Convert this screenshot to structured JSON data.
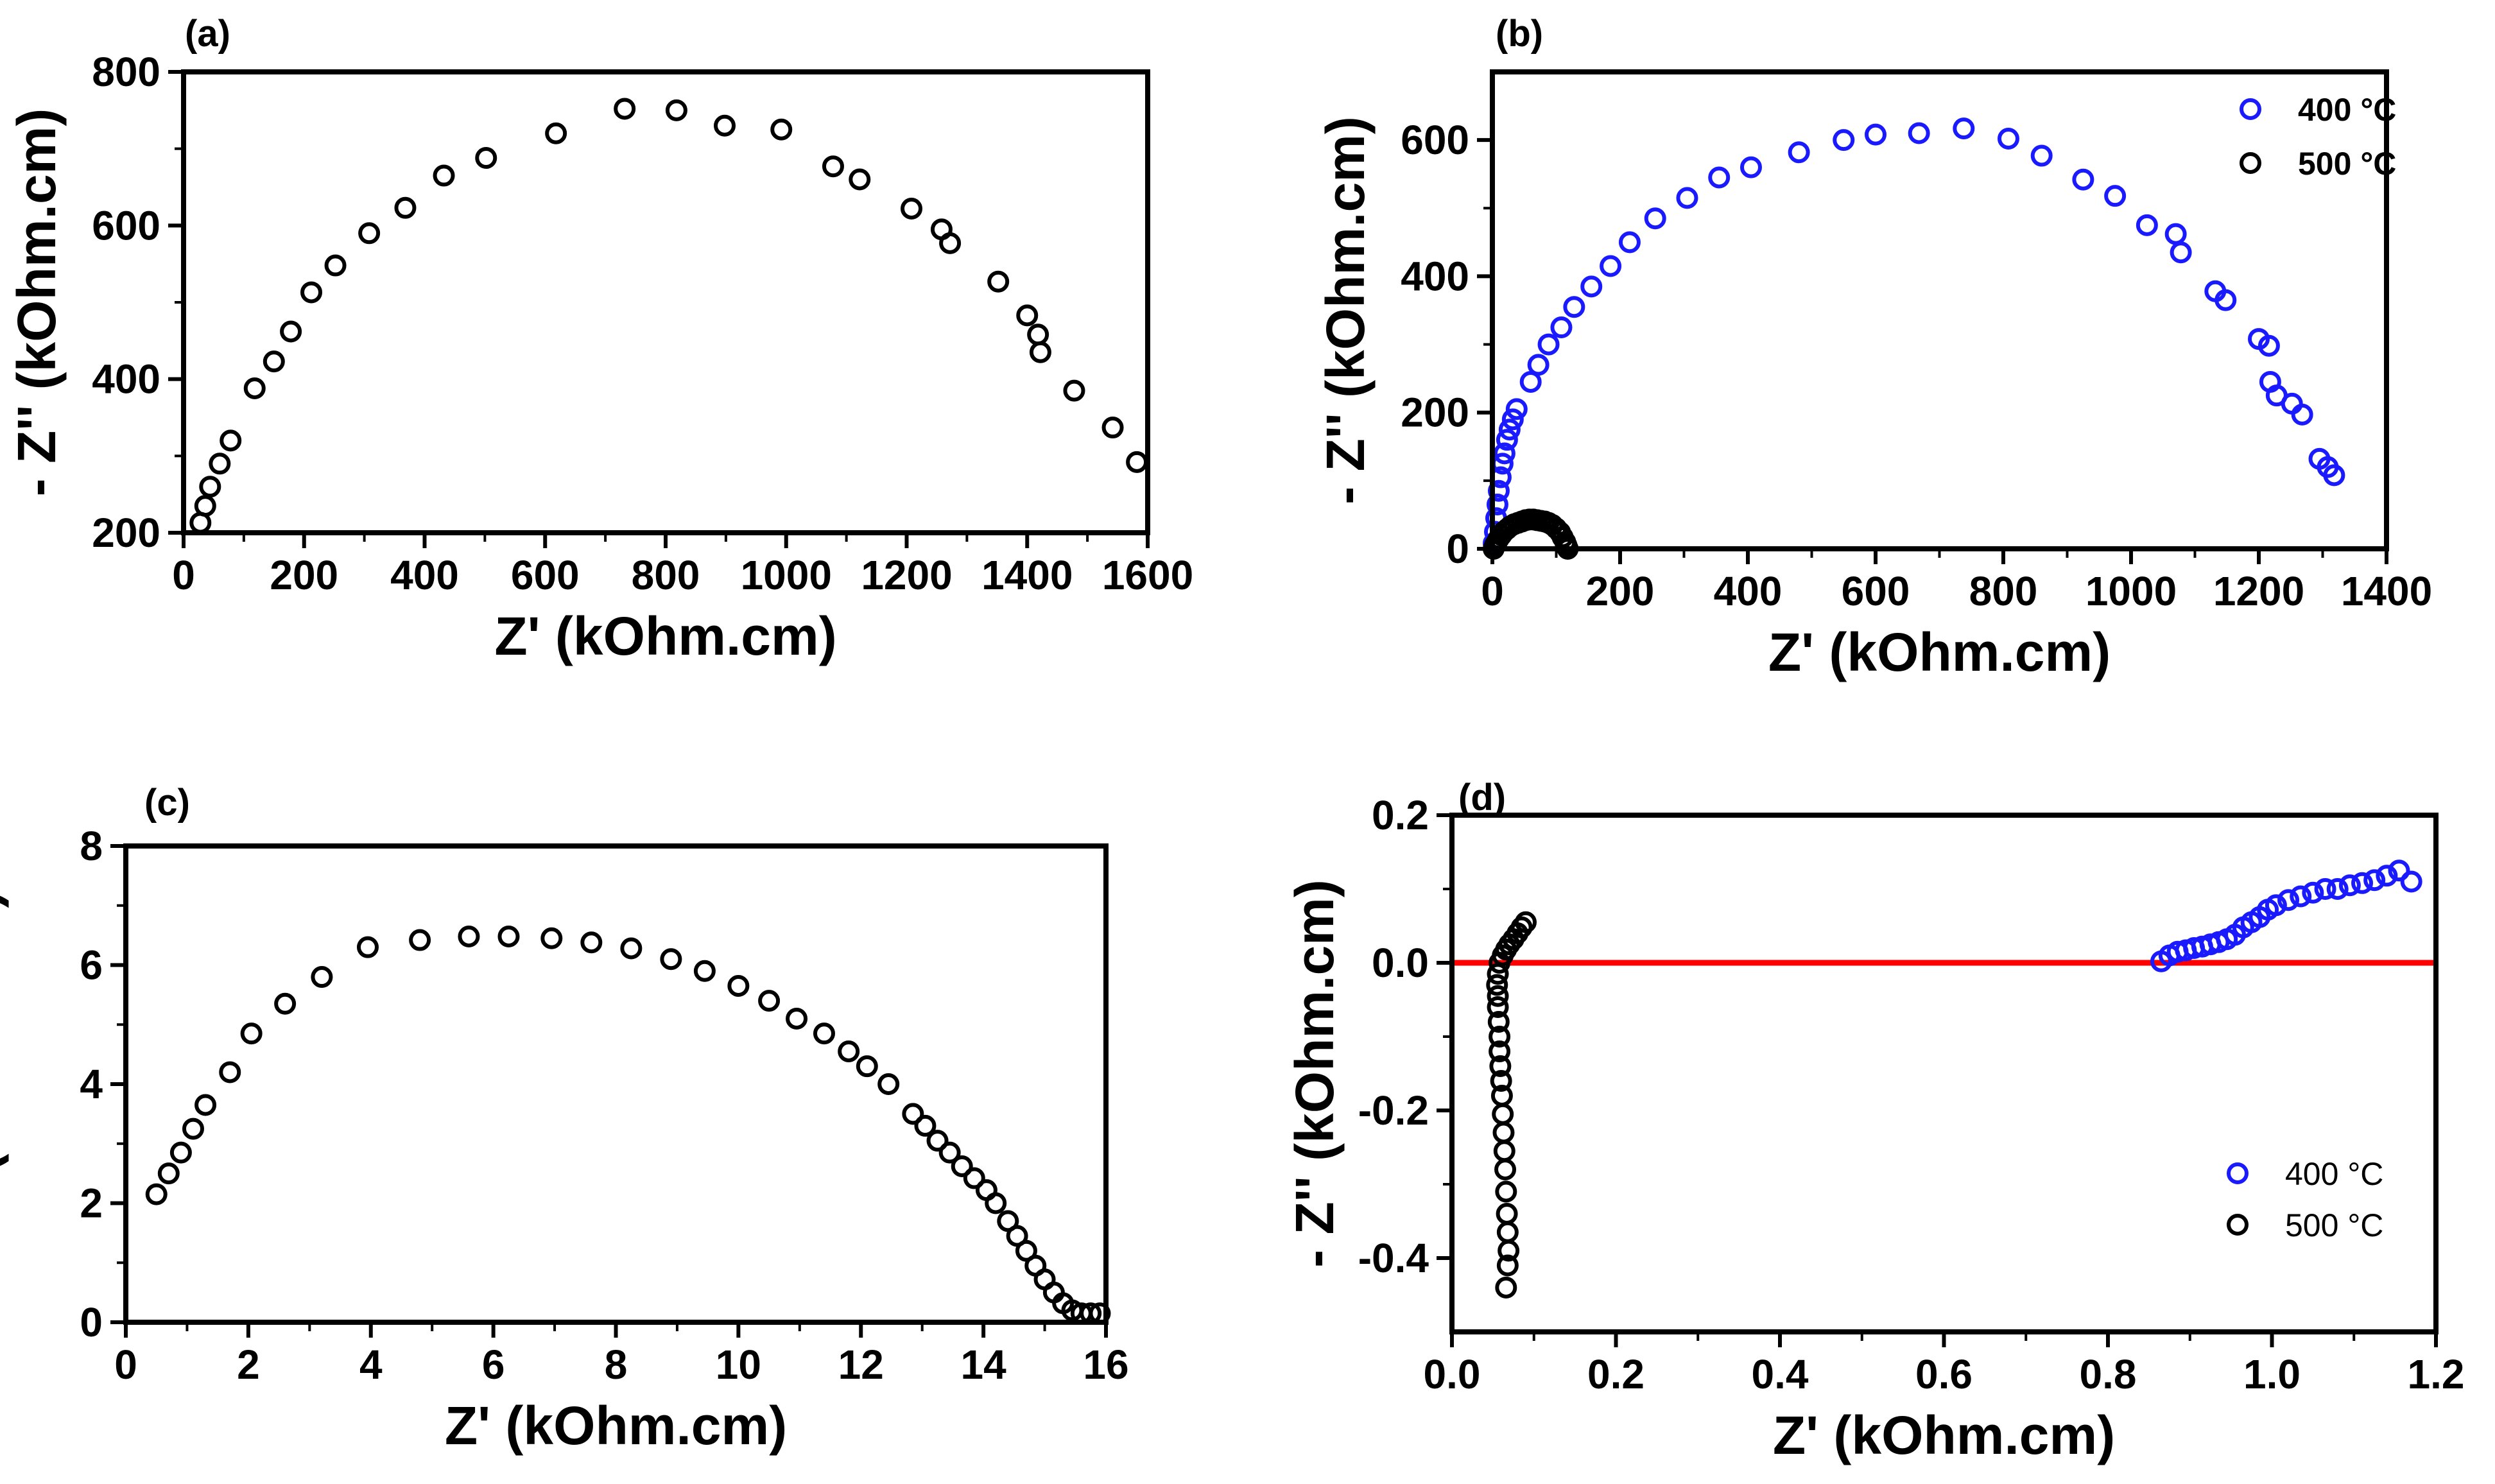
{
  "chart_data": [
    {
      "type": "scatter",
      "panel_label": "(a)",
      "xlabel": "Z' (kOhm.cm)",
      "ylabel": "- Z'' (kOhm.cm)",
      "xlim": [
        0,
        1600
      ],
      "ylim": [
        200,
        800
      ],
      "xticks": [
        0,
        200,
        400,
        600,
        800,
        1000,
        1200,
        1400,
        1600
      ],
      "xtick_labels": [
        "0",
        "200",
        "400",
        "600",
        "800",
        "1000",
        "1200",
        "1400",
        "1600"
      ],
      "yticks": [
        200,
        400,
        600,
        800
      ],
      "ytick_labels": [
        "200",
        "400",
        "600",
        "800"
      ],
      "legend": null,
      "series": [
        {
          "name": "",
          "color": "#000000",
          "points": [
            [
              28,
              213
            ],
            [
              36,
              235
            ],
            [
              44,
              260
            ],
            [
              60,
              290
            ],
            [
              78,
              320
            ],
            [
              118,
              388
            ],
            [
              150,
              423
            ],
            [
              178,
              462
            ],
            [
              212,
              513
            ],
            [
              252,
              548
            ],
            [
              308,
              590
            ],
            [
              368,
              623
            ],
            [
              432,
              665
            ],
            [
              502,
              688
            ],
            [
              618,
              720
            ],
            [
              732,
              752
            ],
            [
              818,
              750
            ],
            [
              898,
              730
            ],
            [
              992,
              725
            ],
            [
              1078,
              677
            ],
            [
              1122,
              660
            ],
            [
              1208,
              622
            ],
            [
              1258,
              595
            ],
            [
              1272,
              577
            ],
            [
              1352,
              527
            ],
            [
              1400,
              483
            ],
            [
              1418,
              458
            ],
            [
              1422,
              435
            ],
            [
              1478,
              385
            ],
            [
              1542,
              337
            ],
            [
              1582,
              292
            ]
          ]
        }
      ]
    },
    {
      "type": "scatter",
      "panel_label": "(b)",
      "xlabel": "Z' (kOhm.cm)",
      "ylabel": "- Z'' (kOhm.cm)",
      "xlim": [
        0,
        1400
      ],
      "ylim": [
        0,
        700
      ],
      "xticks": [
        0,
        200,
        400,
        600,
        800,
        1000,
        1200,
        1400
      ],
      "xtick_labels": [
        "0",
        "200",
        "400",
        "600",
        "800",
        "1000",
        "1200",
        "1400"
      ],
      "yticks": [
        0,
        200,
        400,
        600
      ],
      "ytick_labels": [
        "0",
        "200",
        "400",
        "600"
      ],
      "legend": {
        "position": "top-right",
        "bold": true
      },
      "series": [
        {
          "name": "400 °C",
          "color": "#1a1aff",
          "points": [
            [
              2,
              8
            ],
            [
              4,
              25
            ],
            [
              6,
              45
            ],
            [
              8,
              65
            ],
            [
              10,
              85
            ],
            [
              13,
              105
            ],
            [
              16,
              125
            ],
            [
              19,
              140
            ],
            [
              23,
              160
            ],
            [
              27,
              175
            ],
            [
              32,
              190
            ],
            [
              38,
              205
            ],
            [
              60,
              245
            ],
            [
              72,
              270
            ],
            [
              88,
              300
            ],
            [
              108,
              325
            ],
            [
              128,
              355
            ],
            [
              155,
              385
            ],
            [
              185,
              415
            ],
            [
              215,
              450
            ],
            [
              255,
              485
            ],
            [
              305,
              515
            ],
            [
              355,
              545
            ],
            [
              405,
              560
            ],
            [
              480,
              582
            ],
            [
              550,
              600
            ],
            [
              600,
              608
            ],
            [
              668,
              610
            ],
            [
              738,
              617
            ],
            [
              808,
              602
            ],
            [
              860,
              577
            ],
            [
              925,
              542
            ],
            [
              975,
              518
            ],
            [
              1025,
              475
            ],
            [
              1070,
              462
            ],
            [
              1078,
              435
            ],
            [
              1132,
              378
            ],
            [
              1148,
              365
            ],
            [
              1200,
              308
            ],
            [
              1216,
              298
            ],
            [
              1218,
              245
            ],
            [
              1228,
              225
            ],
            [
              1252,
              213
            ],
            [
              1268,
              197
            ],
            [
              1295,
              132
            ],
            [
              1308,
              120
            ],
            [
              1318,
              108
            ]
          ]
        },
        {
          "name": "500 °C",
          "color": "#000000",
          "points": [
            [
              2,
              0
            ],
            [
              4,
              5
            ],
            [
              7,
              10
            ],
            [
              10,
              15
            ],
            [
              14,
              20
            ],
            [
              18,
              25
            ],
            [
              23,
              29
            ],
            [
              28,
              33
            ],
            [
              34,
              36
            ],
            [
              40,
              38
            ],
            [
              46,
              40
            ],
            [
              52,
              42
            ],
            [
              58,
              43
            ],
            [
              64,
              43
            ],
            [
              70,
              42
            ],
            [
              76,
              41
            ],
            [
              82,
              40
            ],
            [
              88,
              38
            ],
            [
              94,
              35
            ],
            [
              100,
              30
            ],
            [
              106,
              24
            ],
            [
              110,
              17
            ],
            [
              114,
              10
            ],
            [
              116,
              5
            ],
            [
              118,
              0
            ]
          ]
        }
      ]
    },
    {
      "type": "scatter",
      "panel_label": "(c)",
      "xlabel": "Z' (kOhm.cm)",
      "ylabel": "- Z'' (kOhm.cm)",
      "xlim": [
        0,
        16
      ],
      "ylim": [
        0,
        8
      ],
      "xticks": [
        0,
        2,
        4,
        6,
        8,
        10,
        12,
        14,
        16
      ],
      "xtick_labels": [
        "0",
        "2",
        "4",
        "6",
        "8",
        "10",
        "12",
        "14",
        "16"
      ],
      "yticks": [
        0,
        2,
        4,
        6,
        8
      ],
      "ytick_labels": [
        "0",
        "2",
        "4",
        "6",
        "8"
      ],
      "legend": null,
      "series": [
        {
          "name": "",
          "color": "#000000",
          "points": [
            [
              0.5,
              2.15
            ],
            [
              0.7,
              2.5
            ],
            [
              0.9,
              2.85
            ],
            [
              1.1,
              3.25
            ],
            [
              1.3,
              3.65
            ],
            [
              1.7,
              4.2
            ],
            [
              2.05,
              4.85
            ],
            [
              2.6,
              5.35
            ],
            [
              3.2,
              5.8
            ],
            [
              3.95,
              6.3
            ],
            [
              4.8,
              6.42
            ],
            [
              5.6,
              6.48
            ],
            [
              6.25,
              6.48
            ],
            [
              6.95,
              6.45
            ],
            [
              7.6,
              6.38
            ],
            [
              8.25,
              6.28
            ],
            [
              8.9,
              6.1
            ],
            [
              9.45,
              5.9
            ],
            [
              10.0,
              5.65
            ],
            [
              10.5,
              5.4
            ],
            [
              10.95,
              5.1
            ],
            [
              11.4,
              4.85
            ],
            [
              11.8,
              4.55
            ],
            [
              12.1,
              4.3
            ],
            [
              12.45,
              4.0
            ],
            [
              12.85,
              3.5
            ],
            [
              13.05,
              3.3
            ],
            [
              13.25,
              3.05
            ],
            [
              13.45,
              2.85
            ],
            [
              13.65,
              2.62
            ],
            [
              13.85,
              2.42
            ],
            [
              14.05,
              2.22
            ],
            [
              14.2,
              2.0
            ],
            [
              14.4,
              1.7
            ],
            [
              14.55,
              1.45
            ],
            [
              14.7,
              1.2
            ],
            [
              14.85,
              0.95
            ],
            [
              15.0,
              0.72
            ],
            [
              15.15,
              0.5
            ],
            [
              15.3,
              0.32
            ],
            [
              15.45,
              0.2
            ],
            [
              15.6,
              0.15
            ],
            [
              15.75,
              0.15
            ],
            [
              15.9,
              0.15
            ]
          ]
        }
      ]
    },
    {
      "type": "scatter",
      "panel_label": "(d)",
      "xlabel": "Z' (kOhm.cm)",
      "ylabel": "- Z'' (kOhm.cm)",
      "xlim": [
        0.0,
        1.2
      ],
      "ylim": [
        -0.5,
        0.2
      ],
      "xticks": [
        0.0,
        0.2,
        0.4,
        0.6,
        0.8,
        1.0,
        1.2
      ],
      "xtick_labels": [
        "0.0",
        "0.2",
        "0.4",
        "0.6",
        "0.8",
        "1.0",
        "1.2"
      ],
      "yticks": [
        -0.4,
        -0.2,
        0.0,
        0.2
      ],
      "ytick_labels": [
        "-0.4",
        "-0.2",
        "0.0",
        "0.2"
      ],
      "legend": {
        "position": "bottom-right",
        "bold": false
      },
      "reference_line": {
        "y": 0.0,
        "color": "#ff0000"
      },
      "series": [
        {
          "name": "400 °C",
          "color": "#1a1aff",
          "points": [
            [
              0.865,
              0.002
            ],
            [
              0.875,
              0.01
            ],
            [
              0.885,
              0.015
            ],
            [
              0.895,
              0.017
            ],
            [
              0.905,
              0.02
            ],
            [
              0.915,
              0.022
            ],
            [
              0.925,
              0.025
            ],
            [
              0.935,
              0.028
            ],
            [
              0.945,
              0.032
            ],
            [
              0.955,
              0.038
            ],
            [
              0.965,
              0.048
            ],
            [
              0.975,
              0.055
            ],
            [
              0.985,
              0.062
            ],
            [
              0.995,
              0.072
            ],
            [
              1.005,
              0.078
            ],
            [
              1.02,
              0.085
            ],
            [
              1.035,
              0.09
            ],
            [
              1.05,
              0.095
            ],
            [
              1.065,
              0.1
            ],
            [
              1.08,
              0.1
            ],
            [
              1.095,
              0.105
            ],
            [
              1.11,
              0.108
            ],
            [
              1.125,
              0.112
            ],
            [
              1.14,
              0.118
            ],
            [
              1.155,
              0.125
            ],
            [
              1.17,
              0.11
            ]
          ]
        },
        {
          "name": "500 °C",
          "color": "#000000",
          "points": [
            [
              0.066,
              -0.44
            ],
            [
              0.068,
              -0.41
            ],
            [
              0.069,
              -0.39
            ],
            [
              0.068,
              -0.365
            ],
            [
              0.067,
              -0.34
            ],
            [
              0.066,
              -0.31
            ],
            [
              0.065,
              -0.28
            ],
            [
              0.064,
              -0.255
            ],
            [
              0.063,
              -0.23
            ],
            [
              0.062,
              -0.205
            ],
            [
              0.061,
              -0.18
            ],
            [
              0.06,
              -0.16
            ],
            [
              0.059,
              -0.14
            ],
            [
              0.058,
              -0.12
            ],
            [
              0.058,
              -0.1
            ],
            [
              0.057,
              -0.08
            ],
            [
              0.056,
              -0.06
            ],
            [
              0.056,
              -0.045
            ],
            [
              0.055,
              -0.03
            ],
            [
              0.056,
              -0.015
            ],
            [
              0.058,
              0.0
            ],
            [
              0.062,
              0.01
            ],
            [
              0.066,
              0.018
            ],
            [
              0.07,
              0.025
            ],
            [
              0.075,
              0.032
            ],
            [
              0.08,
              0.04
            ],
            [
              0.085,
              0.048
            ],
            [
              0.09,
              0.055
            ]
          ]
        }
      ]
    }
  ]
}
